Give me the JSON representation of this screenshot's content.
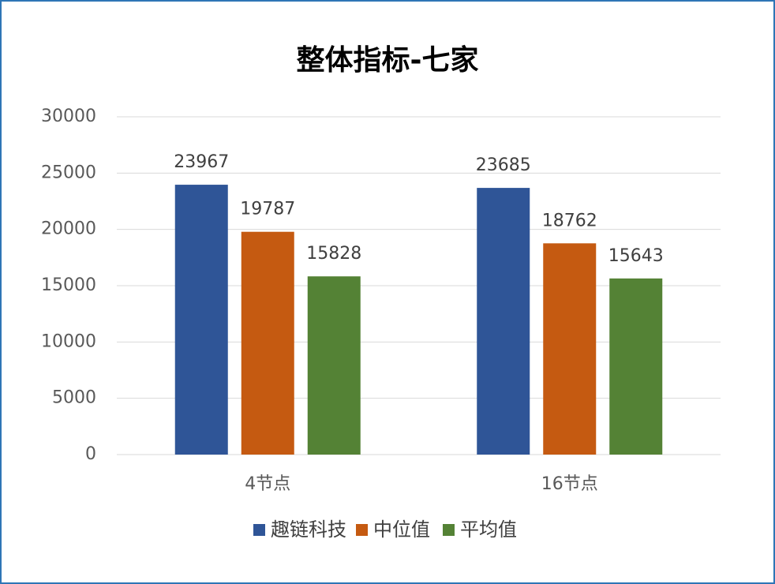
{
  "chart_data": {
    "type": "bar",
    "title": "整体指标-七家",
    "categories": [
      "4节点",
      "16节点"
    ],
    "series": [
      {
        "name": "趣链科技",
        "color": "#2f5597",
        "values": [
          23967,
          23685
        ]
      },
      {
        "name": "中位值",
        "color": "#c55a11",
        "values": [
          19787,
          18762
        ]
      },
      {
        "name": "平均值",
        "color": "#548235",
        "values": [
          15828,
          15643
        ]
      }
    ],
    "ylim": [
      0,
      30000
    ],
    "yticks": [
      0,
      5000,
      10000,
      15000,
      20000,
      25000,
      30000
    ],
    "grid": true,
    "legend": "bottom"
  }
}
